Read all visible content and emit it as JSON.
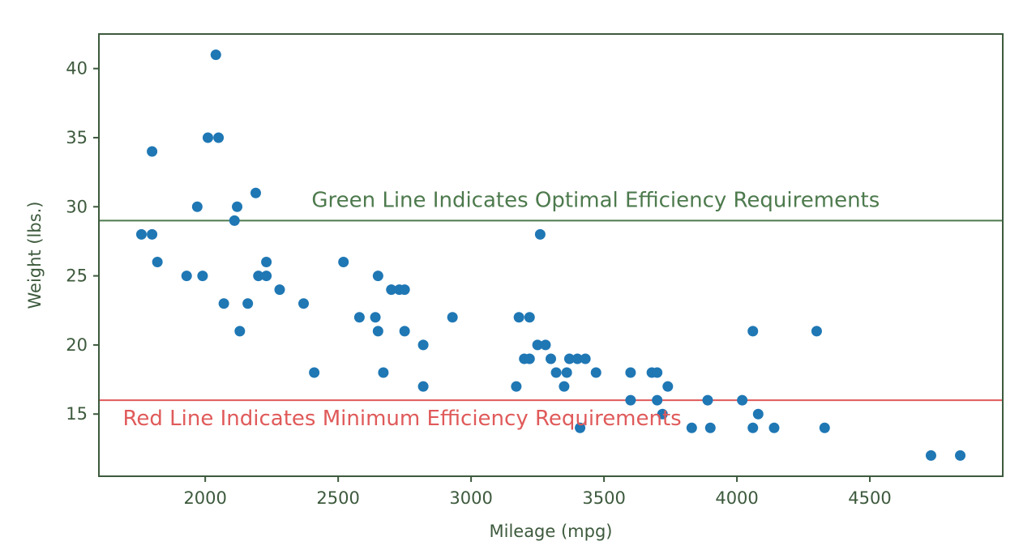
{
  "chart_data": {
    "type": "scatter",
    "title": "",
    "xlabel": "Mileage (mpg)",
    "ylabel": "Weight (lbs.)",
    "xlim": [
      1600,
      5000
    ],
    "ylim": [
      10.5,
      42.5
    ],
    "xticks": [
      2000,
      2500,
      3000,
      3500,
      4000,
      4500
    ],
    "yticks": [
      15,
      20,
      25,
      30,
      35,
      40
    ],
    "grid": false,
    "point_color": "#1f77b4",
    "axis_color": "#3d5a3d",
    "reference_lines": [
      {
        "y": 29,
        "color": "#4d7a4d"
      },
      {
        "y": 16,
        "color": "#e05a5a"
      }
    ],
    "annotations": [
      {
        "text": "Green Line Indicates Optimal Efficiency Requirements",
        "x": 2400,
        "y": 30,
        "color": "#4d7a4d"
      },
      {
        "text": "Red Line Indicates Minimum Efficiency Requirements",
        "x": 1690,
        "y": 14.2,
        "color": "#e05a5a"
      }
    ],
    "points": [
      [
        1760,
        28
      ],
      [
        1800,
        28
      ],
      [
        1800,
        34
      ],
      [
        1820,
        26
      ],
      [
        1930,
        25
      ],
      [
        1970,
        30
      ],
      [
        1990,
        25
      ],
      [
        2010,
        35
      ],
      [
        2040,
        41
      ],
      [
        2050,
        35
      ],
      [
        2070,
        23
      ],
      [
        2110,
        29
      ],
      [
        2120,
        30
      ],
      [
        2130,
        21
      ],
      [
        2160,
        23
      ],
      [
        2190,
        31
      ],
      [
        2200,
        25
      ],
      [
        2230,
        26
      ],
      [
        2230,
        25
      ],
      [
        2280,
        24
      ],
      [
        2370,
        23
      ],
      [
        2410,
        18
      ],
      [
        2520,
        26
      ],
      [
        2580,
        22
      ],
      [
        2640,
        22
      ],
      [
        2650,
        25
      ],
      [
        2650,
        21
      ],
      [
        2670,
        18
      ],
      [
        2700,
        24
      ],
      [
        2730,
        24
      ],
      [
        2750,
        24
      ],
      [
        2750,
        21
      ],
      [
        2820,
        20
      ],
      [
        2820,
        17
      ],
      [
        2930,
        22
      ],
      [
        3170,
        17
      ],
      [
        3180,
        22
      ],
      [
        3200,
        19
      ],
      [
        3220,
        19
      ],
      [
        3220,
        22
      ],
      [
        3250,
        20
      ],
      [
        3260,
        28
      ],
      [
        3280,
        20
      ],
      [
        3300,
        19
      ],
      [
        3320,
        18
      ],
      [
        3350,
        17
      ],
      [
        3360,
        18
      ],
      [
        3370,
        19
      ],
      [
        3400,
        19
      ],
      [
        3410,
        14
      ],
      [
        3430,
        19
      ],
      [
        3470,
        18
      ],
      [
        3600,
        18
      ],
      [
        3600,
        16
      ],
      [
        3680,
        18
      ],
      [
        3700,
        18
      ],
      [
        3700,
        16
      ],
      [
        3720,
        15
      ],
      [
        3740,
        17
      ],
      [
        3830,
        14
      ],
      [
        3890,
        16
      ],
      [
        3900,
        14
      ],
      [
        4020,
        16
      ],
      [
        4060,
        14
      ],
      [
        4060,
        21
      ],
      [
        4080,
        15
      ],
      [
        4140,
        14
      ],
      [
        4300,
        21
      ],
      [
        4330,
        14
      ],
      [
        4730,
        12
      ],
      [
        4840,
        12
      ]
    ]
  }
}
